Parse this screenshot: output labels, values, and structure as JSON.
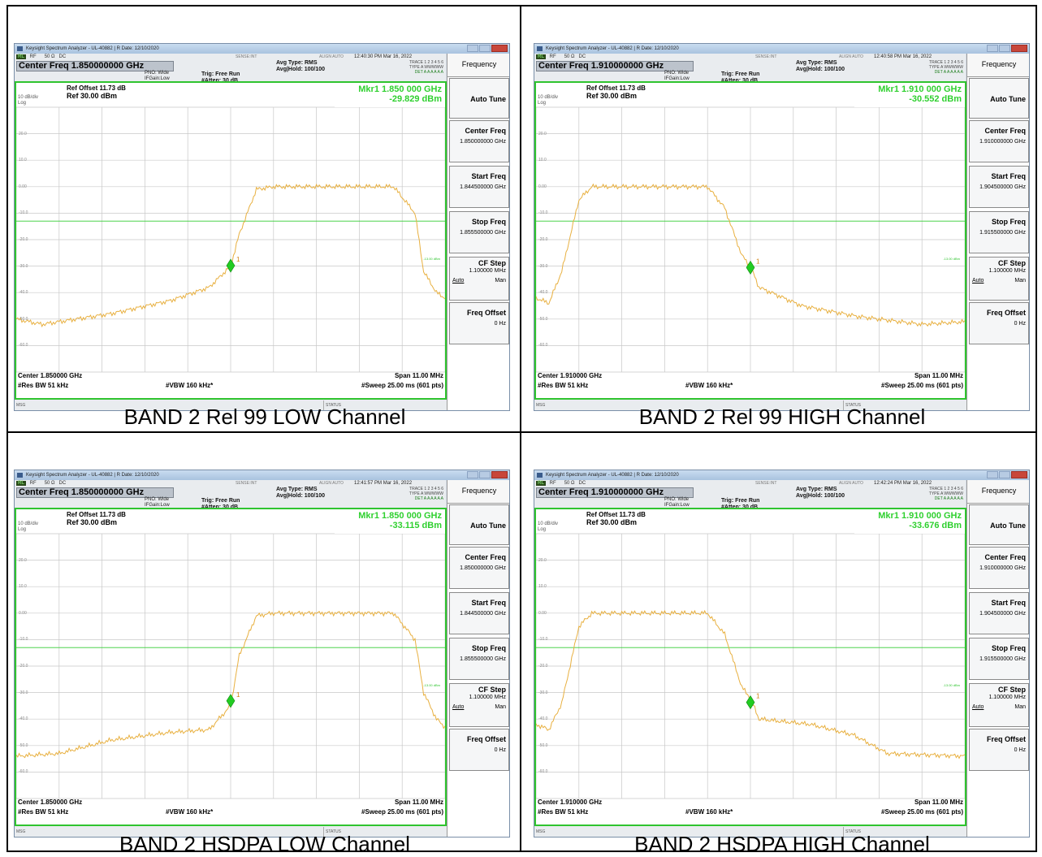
{
  "common": {
    "window_title": "Keysight Spectrum Analyzer - UL-40882 | R Date: 12/10/2020",
    "rl": "RL",
    "rf": "RF",
    "impedance": "50 Ω",
    "coupling": "DC",
    "sense": "SENSE:INT",
    "align": "ALIGN AUTO",
    "pno": "PNO: Wide",
    "ifgain": "IFGain:Low",
    "trig": "Trig: Free Run",
    "atten": "#Atten: 30 dB",
    "avg_type": "Avg Type: RMS",
    "avg_hold": "Avg|Hold: 100/100",
    "trace": "TRACE 1 2 3 4 5 6",
    "type": "TYPE A WWWWW",
    "det": "DET A A A A A A",
    "ref_offset": "Ref Offset 11.73 dB",
    "ref_level": "Ref 30.00 dBm",
    "db_div": "10 dB/div",
    "log": "Log",
    "yticks": [
      "20.0",
      "10.0",
      "0.00",
      "-10.0",
      "-20.0",
      "-30.0",
      "-40.0",
      "-50.0",
      "-60.0"
    ],
    "display_line": "-13.00 dBm",
    "marker_label": "1",
    "res_bw": "#Res BW 51 kHz",
    "vbw": "#VBW 160 kHz*",
    "span": "Span 11.00 MHz",
    "sweep": "#Sweep  25.00 ms (601 pts)",
    "msg": "MSG",
    "status": "STATUS",
    "panel_title": "Frequency",
    "auto_tune": "Auto Tune",
    "center_freq_label": "Center Freq",
    "start_freq_label": "Start Freq",
    "stop_freq_label": "Stop Freq",
    "cf_step_label": "CF Step",
    "cf_step_value": "1.100000 MHz",
    "auto": "Auto",
    "man": "Man",
    "freq_offset_label": "Freq Offset",
    "freq_offset_value": "0 Hz",
    "trace_color": "#e8b040",
    "marker_color": "#22cc22"
  },
  "panels": [
    {
      "caption": "BAND 2 Rel 99 LOW Channel",
      "timestamp": "12:40:30 PM Mar 16, 2022",
      "center_freq_header": "Center Freq 1.850000000 GHz",
      "marker_freq": "Mkr1 1.850 000 GHz",
      "marker_amp": "-29.829 dBm",
      "center_bottom": "Center 1.850000 GHz",
      "center_freq_value": "1.850000000 GHz",
      "start_freq_value": "1.844500000 GHz",
      "stop_freq_value": "1.855500000 GHz"
    },
    {
      "caption": "BAND 2 Rel 99 HIGH Channel",
      "timestamp": "12:40:58 PM Mar 16, 2022",
      "center_freq_header": "Center Freq 1.910000000 GHz",
      "marker_freq": "Mkr1 1.910 000 GHz",
      "marker_amp": "-30.552 dBm",
      "center_bottom": "Center 1.910000 GHz",
      "center_freq_value": "1.910000000 GHz",
      "start_freq_value": "1.904500000 GHz",
      "stop_freq_value": "1.915500000 GHz"
    },
    {
      "caption": "BAND 2 HSDPA LOW Channel",
      "timestamp": "12:41:57 PM Mar 16, 2022",
      "center_freq_header": "Center Freq 1.850000000 GHz",
      "marker_freq": "Mkr1 1.850 000 GHz",
      "marker_amp": "-33.115 dBm",
      "center_bottom": "Center 1.850000 GHz",
      "center_freq_value": "1.850000000 GHz",
      "start_freq_value": "1.844500000 GHz",
      "stop_freq_value": "1.855500000 GHz"
    },
    {
      "caption": "BAND 2 HSDPA HIGH Channel",
      "timestamp": "12:42:24 PM Mar 16, 2022",
      "center_freq_header": "Center Freq 1.910000000 GHz",
      "marker_freq": "Mkr1 1.910 000 GHz",
      "marker_amp": "-33.676 dBm",
      "center_bottom": "Center 1.910000 GHz",
      "center_freq_value": "1.910000000 GHz",
      "start_freq_value": "1.904500000 GHz",
      "stop_freq_value": "1.915500000 GHz"
    }
  ]
}
